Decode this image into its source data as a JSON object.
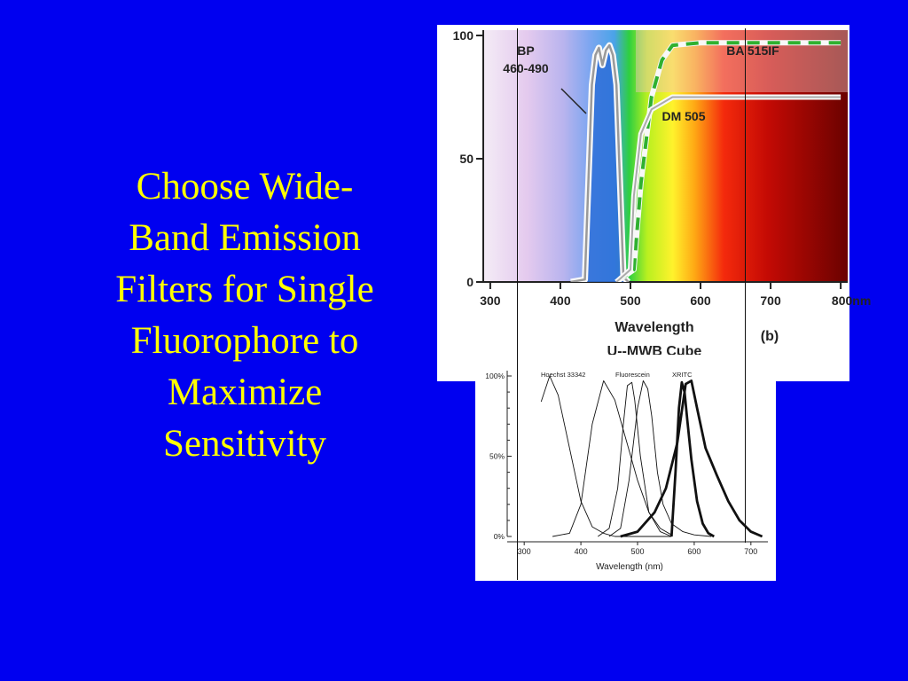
{
  "slide": {
    "background": "#0000f0",
    "title_color": "#ffff00",
    "title_lines": [
      "Choose Wide-",
      "Band Emission",
      "Filters for Single",
      "Fluorophore to",
      "Maximize",
      "Sensitivity"
    ]
  },
  "chart_data": [
    {
      "type": "line",
      "x_ticks": [
        "300",
        "400",
        "500",
        "600",
        "700",
        "800nm"
      ],
      "y_ticks": [
        "0",
        "50",
        "100"
      ],
      "xlim": [
        290,
        810
      ],
      "ylim": [
        0,
        100
      ],
      "xlabel": "Wavelength",
      "caption": "U--MWB Cube",
      "panel_label": "(b)",
      "series": [
        {
          "name": "BP 460-490",
          "name_lines": [
            "BP",
            "460-490"
          ],
          "x": [
            415,
            435,
            445,
            450,
            455,
            460,
            465,
            470,
            475,
            480,
            490,
            497
          ],
          "y": [
            0,
            1,
            80,
            92,
            95,
            88,
            94,
            96,
            92,
            80,
            2,
            0
          ]
        },
        {
          "name": "BA 515IF",
          "x": [
            480,
            505,
            515,
            530,
            545,
            560,
            600,
            800
          ],
          "y": [
            0,
            5,
            40,
            75,
            90,
            96,
            97,
            97
          ]
        },
        {
          "name": "DM 505",
          "x": [
            480,
            500,
            505,
            515,
            530,
            560,
            800
          ],
          "y": [
            0,
            5,
            35,
            60,
            70,
            75,
            75
          ]
        }
      ]
    },
    {
      "type": "line",
      "x_ticks": [
        "300",
        "400",
        "500",
        "600",
        "700"
      ],
      "y_ticks": [
        "0%",
        "50%",
        "100%"
      ],
      "xlim": [
        270,
        730
      ],
      "ylim": [
        0,
        100
      ],
      "xlabel": "Wavelength (nm)",
      "series": [
        {
          "name": "Hoechst 33342",
          "weight": "thin",
          "x": [
            330,
            345,
            360,
            380,
            400,
            420,
            440,
            460,
            480,
            500,
            520,
            540,
            560
          ],
          "y": [
            84,
            100,
            88,
            55,
            22,
            6,
            2,
            0,
            0,
            0,
            0,
            0,
            0
          ]
        },
        {
          "name": "",
          "weight": "thin",
          "x": [
            350,
            380,
            400,
            420,
            440,
            460,
            480,
            500,
            520,
            540,
            560
          ],
          "y": [
            0,
            2,
            20,
            70,
            97,
            85,
            60,
            35,
            15,
            5,
            1
          ]
        },
        {
          "name": "Fluorescein",
          "weight": "thin",
          "x": [
            450,
            470,
            485,
            500,
            510,
            518,
            525,
            535,
            545,
            560,
            580,
            600,
            630
          ],
          "y": [
            0,
            5,
            35,
            80,
            97,
            92,
            75,
            40,
            20,
            8,
            3,
            1,
            0
          ]
        },
        {
          "name": "",
          "weight": "thin",
          "x": [
            430,
            450,
            465,
            475,
            482,
            490,
            495,
            505,
            520,
            540,
            560
          ],
          "y": [
            0,
            5,
            30,
            70,
            94,
            96,
            85,
            50,
            15,
            3,
            0
          ]
        },
        {
          "name": "XRITC",
          "weight": "thick",
          "x": [
            560,
            567,
            573,
            578,
            583,
            588,
            595,
            605,
            615,
            625,
            635
          ],
          "y": [
            0,
            40,
            80,
            96,
            90,
            72,
            48,
            22,
            8,
            2,
            0
          ]
        },
        {
          "name": "",
          "weight": "thick",
          "x": [
            470,
            500,
            530,
            550,
            570,
            585,
            595,
            605,
            620,
            640,
            660,
            680,
            700,
            720
          ],
          "y": [
            0,
            3,
            15,
            30,
            58,
            95,
            97,
            80,
            55,
            38,
            22,
            10,
            3,
            0
          ]
        }
      ]
    }
  ]
}
